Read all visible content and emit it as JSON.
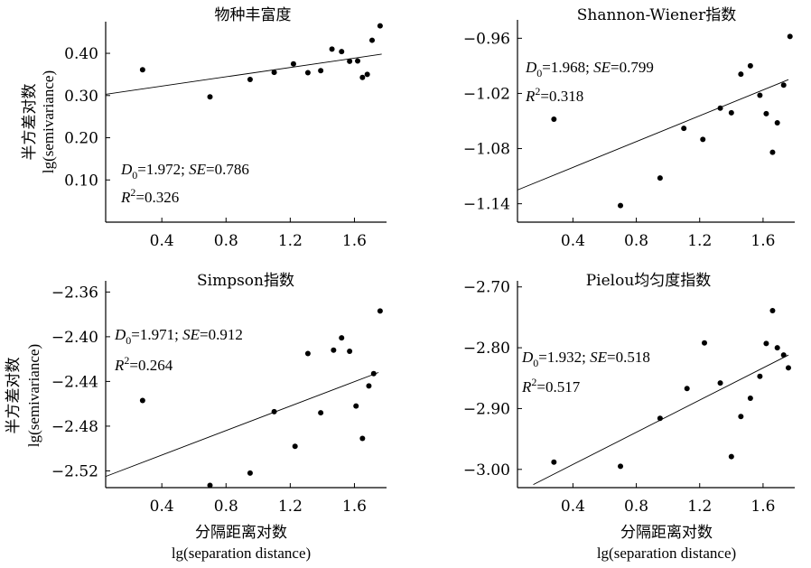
{
  "axis_labels": {
    "y_cn": "半方差对数",
    "y_en": "lg(semivariance)",
    "x_cn": "分隔距离对数",
    "x_en": "lg(separation distance)"
  },
  "chart_data": [
    {
      "type": "scatter",
      "title": "物种丰富度",
      "stats": {
        "d0": "1.972",
        "se": "0.786",
        "r2": "0.326"
      },
      "xlim": [
        0.05,
        1.8
      ],
      "ylim": [
        0.0,
        0.475
      ],
      "x_ticks": [
        0.4,
        0.8,
        1.2,
        1.6
      ],
      "x_tick_labels": [
        "0.4",
        "0.8",
        "1.2",
        "1.6"
      ],
      "y_ticks": [
        0.1,
        0.2,
        0.3,
        0.4
      ],
      "y_tick_labels": [
        "0.10",
        "0.20",
        "0.30",
        "0.40"
      ],
      "trend_line": {
        "x": [
          0.05,
          1.77
        ],
        "y": [
          0.303,
          0.398
        ]
      },
      "points": [
        {
          "x": 0.28,
          "y": 0.361
        },
        {
          "x": 0.7,
          "y": 0.297
        },
        {
          "x": 0.95,
          "y": 0.338
        },
        {
          "x": 1.1,
          "y": 0.355
        },
        {
          "x": 1.22,
          "y": 0.375
        },
        {
          "x": 1.31,
          "y": 0.354
        },
        {
          "x": 1.39,
          "y": 0.359
        },
        {
          "x": 1.46,
          "y": 0.41
        },
        {
          "x": 1.52,
          "y": 0.404
        },
        {
          "x": 1.57,
          "y": 0.381
        },
        {
          "x": 1.62,
          "y": 0.382
        },
        {
          "x": 1.65,
          "y": 0.343
        },
        {
          "x": 1.68,
          "y": 0.35
        },
        {
          "x": 1.71,
          "y": 0.431
        },
        {
          "x": 1.76,
          "y": 0.465
        }
      ]
    },
    {
      "type": "scatter",
      "title": "Shannon-Wiener指数",
      "stats": {
        "d0": "1.968",
        "se": "0.799",
        "r2": "0.318"
      },
      "xlim": [
        0.05,
        1.8
      ],
      "ylim": [
        -1.16,
        -0.94
      ],
      "x_ticks": [
        0.4,
        0.8,
        1.2,
        1.6
      ],
      "x_tick_labels": [
        "0.4",
        "0.8",
        "1.2",
        "1.6"
      ],
      "y_ticks": [
        -1.14,
        -1.08,
        -1.02,
        -0.96
      ],
      "y_tick_labels": [
        "−1.14",
        "−1.08",
        "−1.02",
        "−0.96"
      ],
      "trend_line": {
        "x": [
          0.05,
          1.76
        ],
        "y": [
          -1.125,
          -1.005
        ]
      },
      "points": [
        {
          "x": 0.28,
          "y": -1.048
        },
        {
          "x": 0.7,
          "y": -1.142
        },
        {
          "x": 0.95,
          "y": -1.112
        },
        {
          "x": 1.1,
          "y": -1.058
        },
        {
          "x": 1.22,
          "y": -1.07
        },
        {
          "x": 1.33,
          "y": -1.036
        },
        {
          "x": 1.4,
          "y": -1.041
        },
        {
          "x": 1.46,
          "y": -0.999
        },
        {
          "x": 1.52,
          "y": -0.99
        },
        {
          "x": 1.58,
          "y": -1.022
        },
        {
          "x": 1.62,
          "y": -1.042
        },
        {
          "x": 1.66,
          "y": -1.084
        },
        {
          "x": 1.69,
          "y": -1.052
        },
        {
          "x": 1.73,
          "y": -1.011
        },
        {
          "x": 1.77,
          "y": -0.958
        }
      ]
    },
    {
      "type": "scatter",
      "title": "Simpson指数",
      "stats": {
        "d0": "1.971",
        "se": "0.912",
        "r2": "0.264"
      },
      "xlim": [
        0.05,
        1.8
      ],
      "ylim": [
        -2.535,
        -2.35
      ],
      "x_ticks": [
        0.4,
        0.8,
        1.2,
        1.6
      ],
      "x_tick_labels": [
        "0.4",
        "0.8",
        "1.2",
        "1.6"
      ],
      "y_ticks": [
        -2.52,
        -2.48,
        -2.44,
        -2.4,
        -2.36
      ],
      "y_tick_labels": [
        "−2.52",
        "−2.48",
        "−2.44",
        "−2.40",
        "−2.36"
      ],
      "trend_line": {
        "x": [
          0.05,
          1.75
        ],
        "y": [
          -2.525,
          -2.432
        ]
      },
      "points": [
        {
          "x": 0.28,
          "y": -2.457
        },
        {
          "x": 0.7,
          "y": -2.533
        },
        {
          "x": 0.95,
          "y": -2.522
        },
        {
          "x": 1.1,
          "y": -2.467
        },
        {
          "x": 1.23,
          "y": -2.498
        },
        {
          "x": 1.31,
          "y": -2.415
        },
        {
          "x": 1.39,
          "y": -2.468
        },
        {
          "x": 1.47,
          "y": -2.412
        },
        {
          "x": 1.52,
          "y": -2.401
        },
        {
          "x": 1.57,
          "y": -2.413
        },
        {
          "x": 1.61,
          "y": -2.462
        },
        {
          "x": 1.65,
          "y": -2.491
        },
        {
          "x": 1.69,
          "y": -2.444
        },
        {
          "x": 1.72,
          "y": -2.433
        },
        {
          "x": 1.76,
          "y": -2.377
        }
      ]
    },
    {
      "type": "scatter",
      "title": "Pielou均匀度指数",
      "stats": {
        "d0": "1.932",
        "se": "0.518",
        "r2": "0.517"
      },
      "xlim": [
        0.05,
        1.8
      ],
      "ylim": [
        -3.03,
        -2.69
      ],
      "x_ticks": [
        0.4,
        0.8,
        1.2,
        1.6
      ],
      "x_tick_labels": [
        "0.4",
        "0.8",
        "1.2",
        "1.6"
      ],
      "y_ticks": [
        -3.0,
        -2.9,
        -2.8,
        -2.7
      ],
      "y_tick_labels": [
        "−3.00",
        "−2.90",
        "−2.80",
        "−2.70"
      ],
      "trend_line": {
        "x": [
          0.15,
          1.76
        ],
        "y": [
          -3.025,
          -2.812
        ]
      },
      "points": [
        {
          "x": 0.28,
          "y": -2.988
        },
        {
          "x": 0.7,
          "y": -2.995
        },
        {
          "x": 0.95,
          "y": -2.916
        },
        {
          "x": 1.12,
          "y": -2.867
        },
        {
          "x": 1.23,
          "y": -2.792
        },
        {
          "x": 1.33,
          "y": -2.858
        },
        {
          "x": 1.4,
          "y": -2.979
        },
        {
          "x": 1.46,
          "y": -2.913
        },
        {
          "x": 1.52,
          "y": -2.883
        },
        {
          "x": 1.58,
          "y": -2.847
        },
        {
          "x": 1.62,
          "y": -2.793
        },
        {
          "x": 1.66,
          "y": -2.739
        },
        {
          "x": 1.69,
          "y": -2.8
        },
        {
          "x": 1.73,
          "y": -2.812
        },
        {
          "x": 1.76,
          "y": -2.833
        }
      ]
    }
  ]
}
